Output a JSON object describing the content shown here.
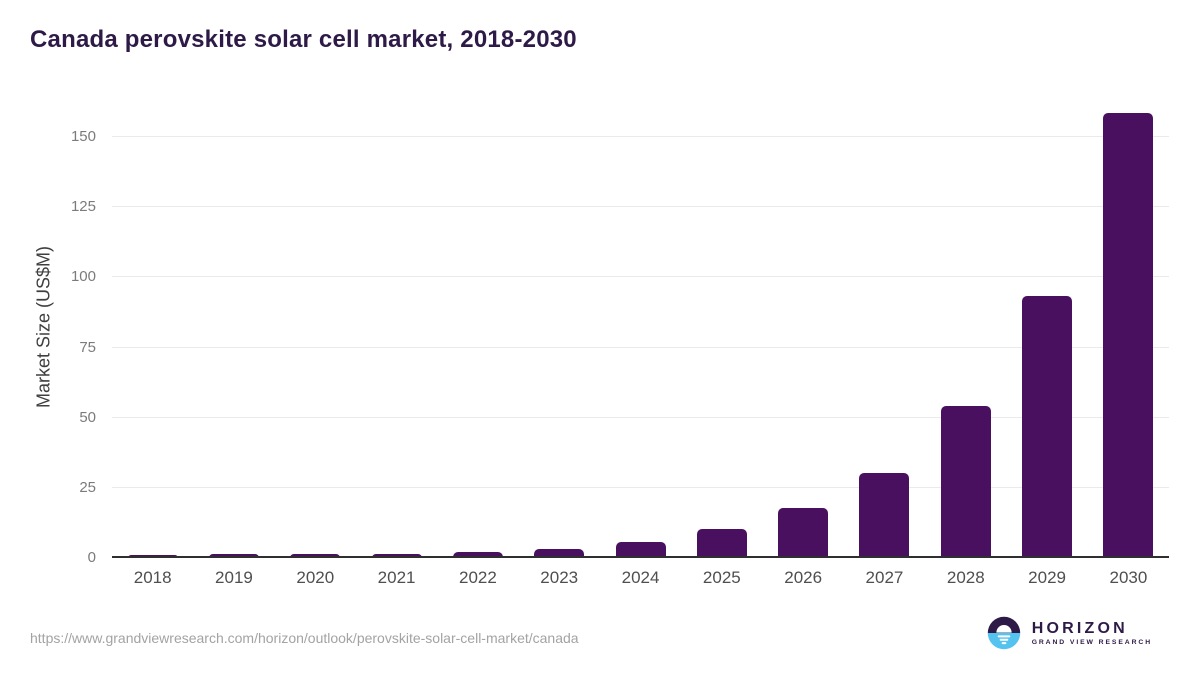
{
  "title": "Canada perovskite solar cell market, 2018-2030",
  "chart_data": {
    "type": "bar",
    "title": "Canada perovskite solar cell market, 2018-2030",
    "categories": [
      "2018",
      "2019",
      "2020",
      "2021",
      "2022",
      "2023",
      "2024",
      "2025",
      "2026",
      "2027",
      "2028",
      "2029",
      "2030"
    ],
    "values": [
      1.1,
      1.6,
      1.4,
      1.4,
      2.0,
      3.1,
      5.7,
      10.4,
      17.8,
      30.3,
      54.3,
      93.5,
      158.7
    ],
    "xlabel": "",
    "ylabel": "Market Size (US$M)",
    "ylim": [
      0,
      165
    ],
    "yticks": [
      0,
      25,
      50,
      75,
      100,
      125,
      150
    ],
    "grid": true,
    "legend": false
  },
  "footer": {
    "source_url": "https://www.grandviewresearch.com/horizon/outlook/perovskite-solar-cell-market/canada",
    "logo": {
      "brand": "HORIZON",
      "tagline": "GRAND VIEW RESEARCH"
    }
  },
  "colors": {
    "title": "#2e1a47",
    "bar": "#4a1060",
    "gridline": "#eaeaea",
    "axis_line": "#2f2f2f",
    "tick_label": "#7b7b7b",
    "year_label": "#4f4f4f",
    "url_text": "#a3a3a3",
    "logo_purple": "#2e1a47",
    "logo_blue": "#55c3f0"
  }
}
